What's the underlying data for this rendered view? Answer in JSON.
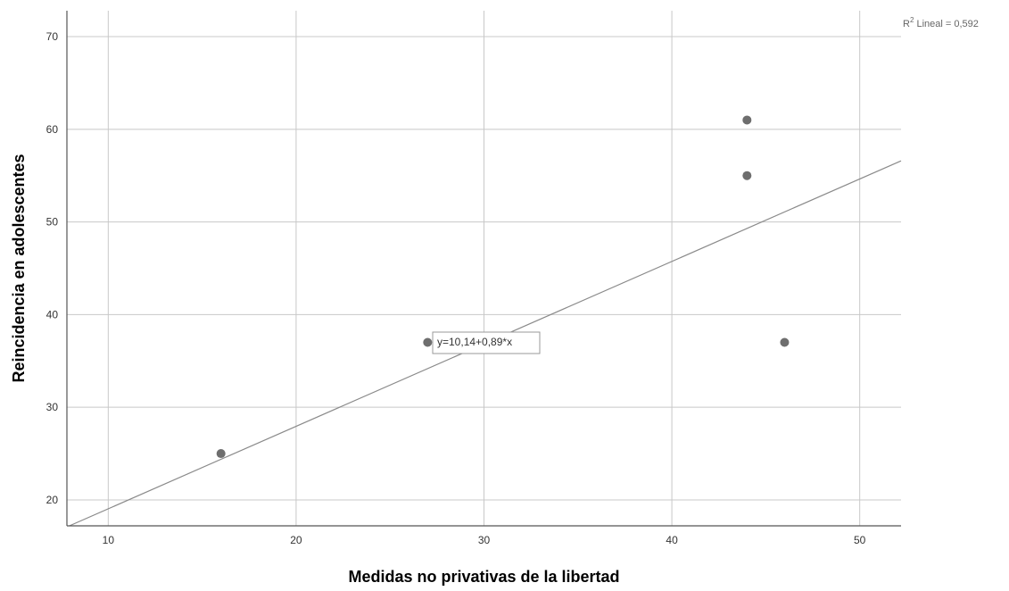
{
  "chart_data": {
    "type": "scatter",
    "xlabel": "Medidas no privativas de la libertad",
    "ylabel": "Reincidencia en adolescentes",
    "xlim": [
      7.8,
      52.2
    ],
    "ylim": [
      17.2,
      72.8
    ],
    "x_ticks": [
      10,
      20,
      30,
      40,
      50
    ],
    "y_ticks": [
      20,
      30,
      40,
      50,
      60,
      70
    ],
    "grid": true,
    "points": [
      {
        "x": 16,
        "y": 25
      },
      {
        "x": 27,
        "y": 37
      },
      {
        "x": 44,
        "y": 61
      },
      {
        "x": 44,
        "y": 55
      },
      {
        "x": 46,
        "y": 37
      }
    ],
    "fit_line": {
      "intercept": 10.14,
      "slope": 0.89
    },
    "equation_label": "y=10,14+0,89*x",
    "r_squared_label": {
      "prefix": "R",
      "superscript": "2",
      "suffix": " Lineal = 0,592"
    },
    "colors": {
      "point": "#6e6e6e",
      "line": "#8a8a8a",
      "grid": "#c8c8c8",
      "axis": "#555555"
    }
  }
}
